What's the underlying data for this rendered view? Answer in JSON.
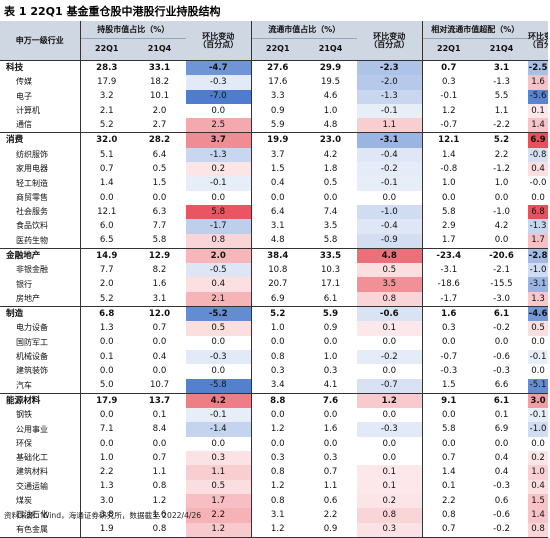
{
  "title": "表 1 22Q1 基金重仓股中港股行业持股结构",
  "headers": {
    "industry": "申万一级行业",
    "group1": "持股市值占比（%）",
    "group2": "流通市值占比（%）",
    "group3": "相对流通市值超配（%）",
    "q1": "22Q1",
    "q4": "21Q4",
    "chg_line1": "环比变动",
    "chg_line2": "（百分点）"
  },
  "colors": {
    "header_bg": "#cfd7e3",
    "negative": "#4f7ccc",
    "positive": "#e8505b"
  },
  "rows": [
    {
      "name": "科技",
      "group": true,
      "v": [
        "28.3",
        "33.1",
        "-4.7",
        "27.6",
        "29.9",
        "-2.3",
        "0.7",
        "3.1",
        "-2.5"
      ],
      "c": [
        -4.7,
        -2.3,
        -2.5
      ]
    },
    {
      "name": "传媒",
      "group": false,
      "v": [
        "17.9",
        "18.2",
        "-0.3",
        "17.6",
        "19.5",
        "-2.0",
        "0.3",
        "-1.3",
        "1.6"
      ],
      "c": [
        -0.3,
        -2.0,
        1.6
      ]
    },
    {
      "name": "电子",
      "group": false,
      "v": [
        "3.2",
        "10.1",
        "-7.0",
        "3.3",
        "4.6",
        "-1.3",
        "-0.1",
        "5.5",
        "-5.6"
      ],
      "c": [
        -7.0,
        -1.3,
        -5.6
      ]
    },
    {
      "name": "计算机",
      "group": false,
      "v": [
        "2.1",
        "2.0",
        "0.0",
        "0.9",
        "1.0",
        "-0.1",
        "1.2",
        "1.1",
        "0.1"
      ],
      "c": [
        0.0,
        -0.1,
        0.1
      ]
    },
    {
      "name": "通信",
      "group": false,
      "v": [
        "5.2",
        "2.7",
        "2.5",
        "5.9",
        "4.8",
        "1.1",
        "-0.7",
        "-2.2",
        "1.4"
      ],
      "c": [
        2.5,
        1.1,
        1.4
      ]
    },
    {
      "name": "消费",
      "group": true,
      "v": [
        "32.0",
        "28.2",
        "3.7",
        "19.9",
        "23.0",
        "-3.1",
        "12.1",
        "5.2",
        "6.9"
      ],
      "c": [
        3.7,
        -3.1,
        6.9
      ]
    },
    {
      "name": "纺织服饰",
      "group": false,
      "v": [
        "5.1",
        "6.4",
        "-1.3",
        "3.7",
        "4.2",
        "-0.4",
        "1.4",
        "2.2",
        "-0.8"
      ],
      "c": [
        -1.3,
        -0.4,
        -0.8
      ]
    },
    {
      "name": "家用电器",
      "group": false,
      "v": [
        "0.7",
        "0.5",
        "0.2",
        "1.5",
        "1.8",
        "-0.2",
        "-0.8",
        "-1.2",
        "0.4"
      ],
      "c": [
        0.2,
        -0.2,
        0.4
      ]
    },
    {
      "name": "轻工制造",
      "group": false,
      "v": [
        "1.4",
        "1.5",
        "-0.1",
        "0.4",
        "0.5",
        "-0.1",
        "1.0",
        "1.0",
        "-0.0"
      ],
      "c": [
        -0.1,
        -0.1,
        0.0
      ]
    },
    {
      "name": "商贸零售",
      "group": false,
      "v": [
        "0.0",
        "0.0",
        "0.0",
        "0.0",
        "0.0",
        "0.0",
        "0.0",
        "0.0",
        "0.0"
      ],
      "c": [
        0.0,
        0.0,
        0.0
      ]
    },
    {
      "name": "社会服务",
      "group": false,
      "v": [
        "12.1",
        "6.3",
        "5.8",
        "6.4",
        "7.4",
        "-1.0",
        "5.8",
        "-1.0",
        "6.8"
      ],
      "c": [
        5.8,
        -1.0,
        6.8
      ]
    },
    {
      "name": "食品饮料",
      "group": false,
      "v": [
        "6.0",
        "7.7",
        "-1.7",
        "3.1",
        "3.5",
        "-0.4",
        "2.9",
        "4.2",
        "-1.3"
      ],
      "c": [
        -1.7,
        -0.4,
        -1.3
      ]
    },
    {
      "name": "医药生物",
      "group": false,
      "v": [
        "6.5",
        "5.8",
        "0.8",
        "4.8",
        "5.8",
        "-0.9",
        "1.7",
        "0.0",
        "1.7"
      ],
      "c": [
        0.8,
        -0.9,
        1.7
      ]
    },
    {
      "name": "金融地产",
      "group": true,
      "v": [
        "14.9",
        "12.9",
        "2.0",
        "38.4",
        "33.5",
        "4.8",
        "-23.4",
        "-20.6",
        "-2.8"
      ],
      "c": [
        2.0,
        4.8,
        -2.8
      ]
    },
    {
      "name": "非银金融",
      "group": false,
      "v": [
        "7.7",
        "8.2",
        "-0.5",
        "10.8",
        "10.3",
        "0.5",
        "-3.1",
        "-2.1",
        "-1.0"
      ],
      "c": [
        -0.5,
        0.5,
        -1.0
      ]
    },
    {
      "name": "银行",
      "group": false,
      "v": [
        "2.0",
        "1.6",
        "0.4",
        "20.7",
        "17.1",
        "3.5",
        "-18.6",
        "-15.5",
        "-3.1"
      ],
      "c": [
        0.4,
        3.5,
        -3.1
      ]
    },
    {
      "name": "房地产",
      "group": false,
      "v": [
        "5.2",
        "3.1",
        "2.1",
        "6.9",
        "6.1",
        "0.8",
        "-1.7",
        "-3.0",
        "1.3"
      ],
      "c": [
        2.1,
        0.8,
        1.3
      ]
    },
    {
      "name": "制造",
      "group": true,
      "v": [
        "6.8",
        "12.0",
        "-5.2",
        "5.2",
        "5.9",
        "-0.6",
        "1.6",
        "6.1",
        "-4.6"
      ],
      "c": [
        -5.2,
        -0.6,
        -4.6
      ]
    },
    {
      "name": "电力设备",
      "group": false,
      "v": [
        "1.3",
        "0.7",
        "0.5",
        "1.0",
        "0.9",
        "0.1",
        "0.3",
        "-0.2",
        "0.5"
      ],
      "c": [
        0.5,
        0.1,
        0.5
      ]
    },
    {
      "name": "国防军工",
      "group": false,
      "v": [
        "0.0",
        "0.0",
        "0.0",
        "0.0",
        "0.0",
        "0.0",
        "0.0",
        "0.0",
        "0.0"
      ],
      "c": [
        0.0,
        0.0,
        0.0
      ]
    },
    {
      "name": "机械设备",
      "group": false,
      "v": [
        "0.1",
        "0.4",
        "-0.3",
        "0.8",
        "1.0",
        "-0.2",
        "-0.7",
        "-0.6",
        "-0.1"
      ],
      "c": [
        -0.3,
        -0.2,
        -0.1
      ]
    },
    {
      "name": "建筑装饰",
      "group": false,
      "v": [
        "0.0",
        "0.0",
        "0.0",
        "0.3",
        "0.3",
        "0.0",
        "-0.3",
        "-0.3",
        "0.0"
      ],
      "c": [
        0.0,
        0.0,
        0.0
      ]
    },
    {
      "name": "汽车",
      "group": false,
      "v": [
        "5.0",
        "10.7",
        "-5.8",
        "3.4",
        "4.1",
        "-0.7",
        "1.5",
        "6.6",
        "-5.1"
      ],
      "c": [
        -5.8,
        -0.7,
        -5.1
      ]
    },
    {
      "name": "能源材料",
      "group": true,
      "v": [
        "17.9",
        "13.7",
        "4.2",
        "8.8",
        "7.6",
        "1.2",
        "9.1",
        "6.1",
        "3.0"
      ],
      "c": [
        4.2,
        1.2,
        3.0
      ]
    },
    {
      "name": "钢铁",
      "group": false,
      "v": [
        "0.0",
        "0.1",
        "-0.1",
        "0.0",
        "0.0",
        "0.0",
        "0.0",
        "0.1",
        "-0.1"
      ],
      "c": [
        -0.1,
        0.0,
        -0.1
      ]
    },
    {
      "name": "公用事业",
      "group": false,
      "v": [
        "7.1",
        "8.4",
        "-1.4",
        "1.2",
        "1.6",
        "-0.3",
        "5.8",
        "6.9",
        "-1.0"
      ],
      "c": [
        -1.4,
        -0.3,
        -1.0
      ]
    },
    {
      "name": "环保",
      "group": false,
      "v": [
        "0.0",
        "0.0",
        "0.0",
        "0.0",
        "0.0",
        "0.0",
        "0.0",
        "0.0",
        "0.0"
      ],
      "c": [
        0.0,
        0.0,
        0.0
      ]
    },
    {
      "name": "基础化工",
      "group": false,
      "v": [
        "1.0",
        "0.7",
        "0.3",
        "0.3",
        "0.3",
        "0.0",
        "0.7",
        "0.4",
        "0.2"
      ],
      "c": [
        0.3,
        0.0,
        0.2
      ]
    },
    {
      "name": "建筑材料",
      "group": false,
      "v": [
        "2.2",
        "1.1",
        "1.1",
        "0.8",
        "0.7",
        "0.1",
        "1.4",
        "0.4",
        "1.0"
      ],
      "c": [
        1.1,
        0.1,
        1.0
      ]
    },
    {
      "name": "交通运输",
      "group": false,
      "v": [
        "1.3",
        "0.8",
        "0.5",
        "1.2",
        "1.1",
        "0.1",
        "0.1",
        "-0.3",
        "0.4"
      ],
      "c": [
        0.5,
        0.1,
        0.4
      ]
    },
    {
      "name": "煤炭",
      "group": false,
      "v": [
        "3.0",
        "1.2",
        "1.7",
        "0.8",
        "0.6",
        "0.2",
        "2.2",
        "0.6",
        "1.5"
      ],
      "c": [
        1.7,
        0.2,
        1.5
      ]
    },
    {
      "name": "石油石化",
      "group": false,
      "v": [
        "3.8",
        "1.6",
        "2.2",
        "3.1",
        "2.2",
        "0.8",
        "0.8",
        "-0.6",
        "1.4"
      ],
      "c": [
        2.2,
        0.8,
        1.4
      ]
    },
    {
      "name": "有色金属",
      "group": false,
      "v": [
        "1.9",
        "0.8",
        "1.2",
        "1.2",
        "0.9",
        "0.3",
        "0.7",
        "-0.2",
        "0.8"
      ],
      "c": [
        1.2,
        0.3,
        0.8
      ]
    }
  ],
  "source": "资料来源：Wind，海通证券研究所，数据截至 2022/4/26"
}
